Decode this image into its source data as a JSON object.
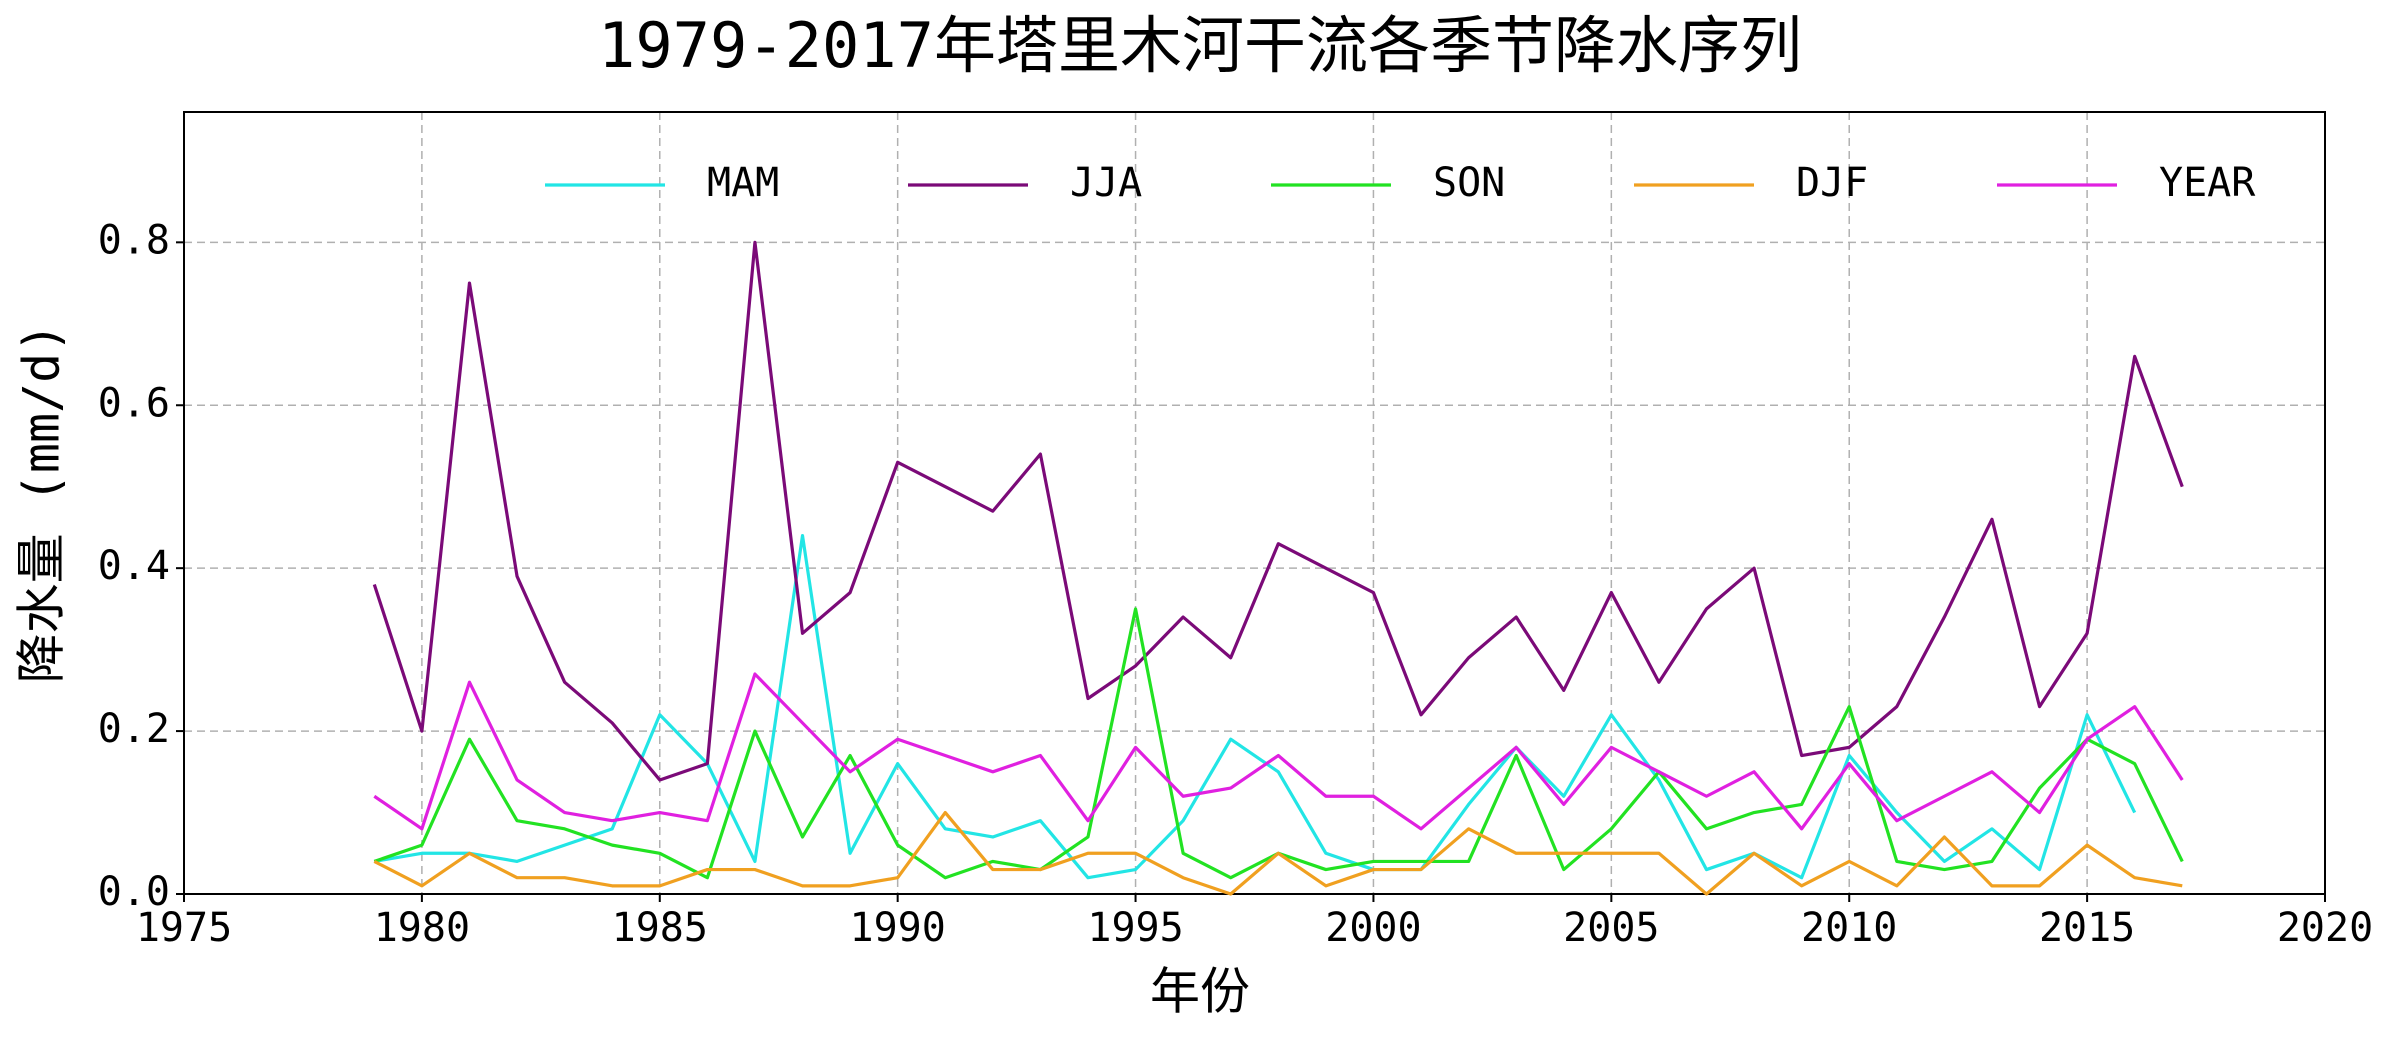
{
  "chart_data": {
    "type": "line",
    "title": "1979-2017年塔里木河干流各季节降水序列",
    "xlabel": "年份",
    "ylabel": "降水量 (mm/d)",
    "x": [
      1979,
      1980,
      1981,
      1982,
      1983,
      1984,
      1985,
      1986,
      1987,
      1988,
      1989,
      1990,
      1991,
      1992,
      1993,
      1994,
      1995,
      1996,
      1997,
      1998,
      1999,
      2000,
      2001,
      2002,
      2003,
      2004,
      2005,
      2006,
      2007,
      2008,
      2009,
      2010,
      2011,
      2012,
      2013,
      2014,
      2015,
      2016,
      2017
    ],
    "series": [
      {
        "name": "MAM",
        "color": "#22e5e5",
        "values": [
          0.04,
          0.05,
          0.05,
          0.04,
          0.06,
          0.08,
          0.22,
          0.16,
          0.04,
          0.44,
          0.05,
          0.16,
          0.08,
          0.07,
          0.09,
          0.02,
          0.03,
          0.09,
          0.19,
          0.15,
          0.05,
          0.03,
          0.03,
          0.11,
          0.18,
          0.12,
          0.22,
          0.14,
          0.03,
          0.05,
          0.02,
          0.17,
          0.1,
          0.04,
          0.08,
          0.03,
          0.22,
          0.1,
          null
        ]
      },
      {
        "name": "JJA",
        "color": "#7b0a78",
        "values": [
          0.38,
          0.2,
          0.75,
          0.39,
          0.26,
          0.21,
          0.14,
          0.16,
          0.8,
          0.32,
          0.37,
          0.53,
          0.5,
          0.47,
          0.54,
          0.24,
          0.28,
          0.34,
          0.29,
          0.43,
          0.4,
          0.37,
          0.22,
          0.29,
          0.34,
          0.25,
          0.37,
          0.26,
          0.35,
          0.4,
          0.17,
          0.18,
          0.23,
          0.34,
          0.46,
          0.23,
          0.32,
          0.66,
          0.5
        ]
      },
      {
        "name": "SON",
        "color": "#22e222",
        "values": [
          0.04,
          0.06,
          0.19,
          0.09,
          0.08,
          0.06,
          0.05,
          0.02,
          0.2,
          0.07,
          0.17,
          0.06,
          0.02,
          0.04,
          0.03,
          0.07,
          0.35,
          0.05,
          0.02,
          0.05,
          0.03,
          0.04,
          0.04,
          0.04,
          0.17,
          0.03,
          0.08,
          0.15,
          0.08,
          0.1,
          0.11,
          0.23,
          0.04,
          0.03,
          0.04,
          0.13,
          0.19,
          0.16,
          0.04
        ]
      },
      {
        "name": "DJF",
        "color": "#f0a020",
        "values": [
          0.04,
          0.01,
          0.05,
          0.02,
          0.02,
          0.01,
          0.01,
          0.03,
          0.03,
          0.01,
          0.01,
          0.02,
          0.1,
          0.03,
          0.03,
          0.05,
          0.05,
          0.02,
          0.0,
          0.05,
          0.01,
          0.03,
          0.03,
          0.08,
          0.05,
          0.05,
          0.05,
          0.05,
          0.0,
          0.05,
          0.01,
          0.04,
          0.01,
          0.07,
          0.01,
          0.01,
          0.06,
          0.02,
          0.01
        ]
      },
      {
        "name": "YEAR",
        "color": "#e020e0",
        "values": [
          0.12,
          0.08,
          0.26,
          0.14,
          0.1,
          0.09,
          0.1,
          0.09,
          0.27,
          0.21,
          0.15,
          0.19,
          0.17,
          0.15,
          0.17,
          0.09,
          0.18,
          0.12,
          0.13,
          0.17,
          0.12,
          0.12,
          0.08,
          0.13,
          0.18,
          0.11,
          0.18,
          0.15,
          0.12,
          0.15,
          0.08,
          0.16,
          0.09,
          0.12,
          0.15,
          0.1,
          0.19,
          0.23,
          0.14
        ]
      }
    ],
    "xlim": [
      1975,
      2020
    ],
    "xticks": [
      1975,
      1980,
      1985,
      1990,
      1995,
      2000,
      2005,
      2010,
      2015,
      2020
    ],
    "ylim": [
      0,
      0.96
    ],
    "yticks": [
      {
        "value": 0,
        "label": "0.0"
      },
      0.2,
      0.4,
      0.6,
      0.8
    ],
    "grid": true,
    "legend": "top"
  }
}
